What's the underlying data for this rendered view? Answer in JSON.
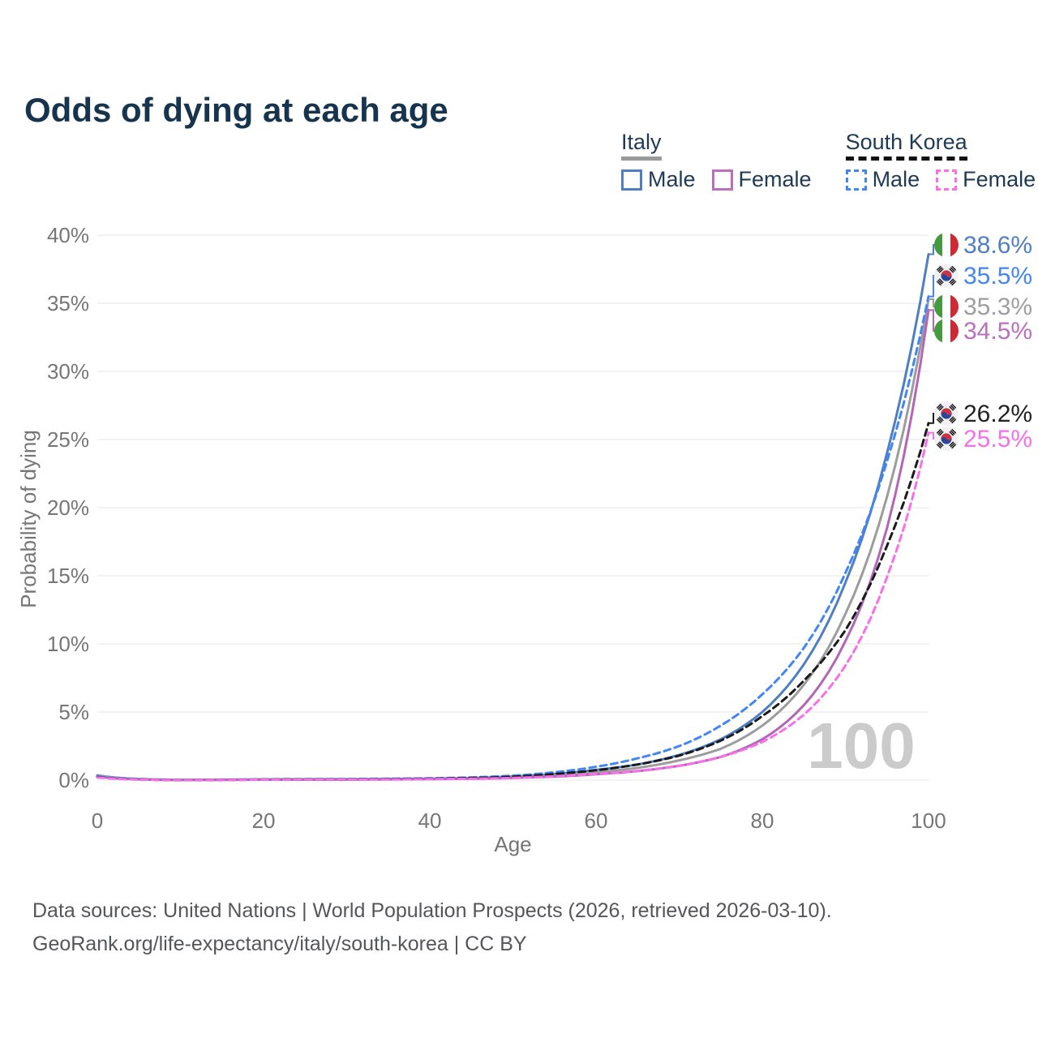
{
  "title": "Odds of dying at each age",
  "legend": {
    "groups": [
      {
        "id": "italy",
        "label": "Italy",
        "line_style": "solid",
        "underline_color": "#9a9a9a",
        "items": [
          {
            "label": "Male",
            "color": "#4e7fc3",
            "dashed": false
          },
          {
            "label": "Female",
            "color": "#bc6fbe",
            "dashed": false
          }
        ]
      },
      {
        "id": "south-korea",
        "label": "South Korea",
        "line_style": "dashed",
        "underline_color": "#111111",
        "items": [
          {
            "label": "Male",
            "color": "#4285f4",
            "dashed": true
          },
          {
            "label": "Female",
            "color": "#f96ee9",
            "dashed": true
          }
        ]
      }
    ]
  },
  "chart_data": {
    "type": "line",
    "title": "Odds of dying at each age",
    "xlabel": "Age",
    "ylabel": "Probability of dying",
    "xlim": [
      0,
      100
    ],
    "ylim": [
      0,
      40
    ],
    "x_ticks": [
      0,
      20,
      40,
      60,
      80,
      100
    ],
    "y_ticks": [
      {
        "value": 0,
        "label": "0%"
      },
      {
        "value": 5,
        "label": "5%"
      },
      {
        "value": 10,
        "label": "10%"
      },
      {
        "value": 15,
        "label": "15%"
      },
      {
        "value": 20,
        "label": "20%"
      },
      {
        "value": 25,
        "label": "25%"
      },
      {
        "value": 30,
        "label": "30%"
      },
      {
        "value": 35,
        "label": "35%"
      },
      {
        "value": 40,
        "label": "40%"
      }
    ],
    "grid": "horizontal",
    "legend_position": "top-right",
    "watermark": "100",
    "x": [
      0,
      10,
      20,
      30,
      40,
      45,
      50,
      55,
      60,
      65,
      70,
      75,
      80,
      85,
      90,
      95,
      100
    ],
    "series": [
      {
        "id": "italy-male",
        "name": "Italy Male",
        "country": "Italy",
        "sex": "Male",
        "color": "#4e7fc3",
        "dashed": false,
        "values_pct": [
          0.35,
          0.02,
          0.06,
          0.07,
          0.11,
          0.16,
          0.27,
          0.45,
          0.75,
          1.15,
          1.85,
          3.0,
          5.0,
          8.5,
          14.5,
          24.0,
          38.6
        ]
      },
      {
        "id": "italy-both",
        "name": "Italy Both sexes",
        "country": "Italy",
        "sex": "Both",
        "color": "#9c9c9c",
        "dashed": false,
        "values_pct": [
          0.3,
          0.02,
          0.04,
          0.05,
          0.09,
          0.13,
          0.21,
          0.35,
          0.58,
          0.9,
          1.45,
          2.3,
          4.0,
          7.0,
          12.2,
          20.8,
          35.3
        ]
      },
      {
        "id": "italy-female",
        "name": "Italy Female",
        "country": "Italy",
        "sex": "Female",
        "color": "#b266b5",
        "dashed": false,
        "values_pct": [
          0.26,
          0.01,
          0.03,
          0.04,
          0.07,
          0.1,
          0.16,
          0.26,
          0.43,
          0.66,
          1.05,
          1.7,
          3.0,
          5.5,
          10.2,
          18.5,
          34.5
        ]
      },
      {
        "id": "korea-male",
        "name": "South Korea Male",
        "country": "South Korea",
        "sex": "Male",
        "color": "#4285f4",
        "dashed": true,
        "values_pct": [
          0.25,
          0.02,
          0.06,
          0.08,
          0.13,
          0.2,
          0.33,
          0.58,
          0.98,
          1.6,
          2.5,
          4.0,
          6.3,
          9.7,
          15.2,
          23.4,
          35.5
        ]
      },
      {
        "id": "korea-both",
        "name": "South Korea Both sexes",
        "country": "South Korea",
        "sex": "Both",
        "color": "#1b1b1b",
        "dashed": true,
        "values_pct": [
          0.22,
          0.01,
          0.04,
          0.05,
          0.1,
          0.15,
          0.25,
          0.45,
          0.73,
          1.15,
          1.8,
          2.9,
          4.7,
          7.3,
          11.0,
          17.2,
          26.2
        ]
      },
      {
        "id": "korea-female",
        "name": "South Korea Female",
        "country": "South Korea",
        "sex": "Female",
        "color": "#f96ee9",
        "dashed": true,
        "values_pct": [
          0.19,
          0.01,
          0.03,
          0.04,
          0.07,
          0.1,
          0.16,
          0.28,
          0.45,
          0.68,
          1.05,
          1.7,
          2.8,
          4.8,
          8.4,
          14.9,
          25.5
        ]
      }
    ],
    "end_labels": [
      {
        "series": "italy-male",
        "label": "38.6%",
        "flag": "italy-flag",
        "color": "#4e7fc3"
      },
      {
        "series": "korea-male",
        "label": "35.5%",
        "flag": "south-korea-flag",
        "color": "#4285f4"
      },
      {
        "series": "italy-both",
        "label": "35.3%",
        "flag": "italy-flag",
        "color": "#9e9e9e"
      },
      {
        "series": "italy-female",
        "label": "34.5%",
        "flag": "italy-flag",
        "color": "#bc6fbe"
      },
      {
        "series": "korea-both",
        "label": "26.2%",
        "flag": "south-korea-flag",
        "color": "#222222"
      },
      {
        "series": "korea-female",
        "label": "25.5%",
        "flag": "south-korea-flag",
        "color": "#f96ee9"
      }
    ]
  },
  "footer": {
    "line1": "Data sources: United Nations | World Population Prospects (2026, retrieved 2026-03-10).",
    "line2": "GeoRank.org/life-expectancy/italy/south-korea | CC BY"
  },
  "colors": {
    "title": "#17344f",
    "axis_text": "#767676",
    "gridline": "#eaeaea",
    "watermark": "#cbcbcb",
    "footer_text": "#55565a"
  }
}
